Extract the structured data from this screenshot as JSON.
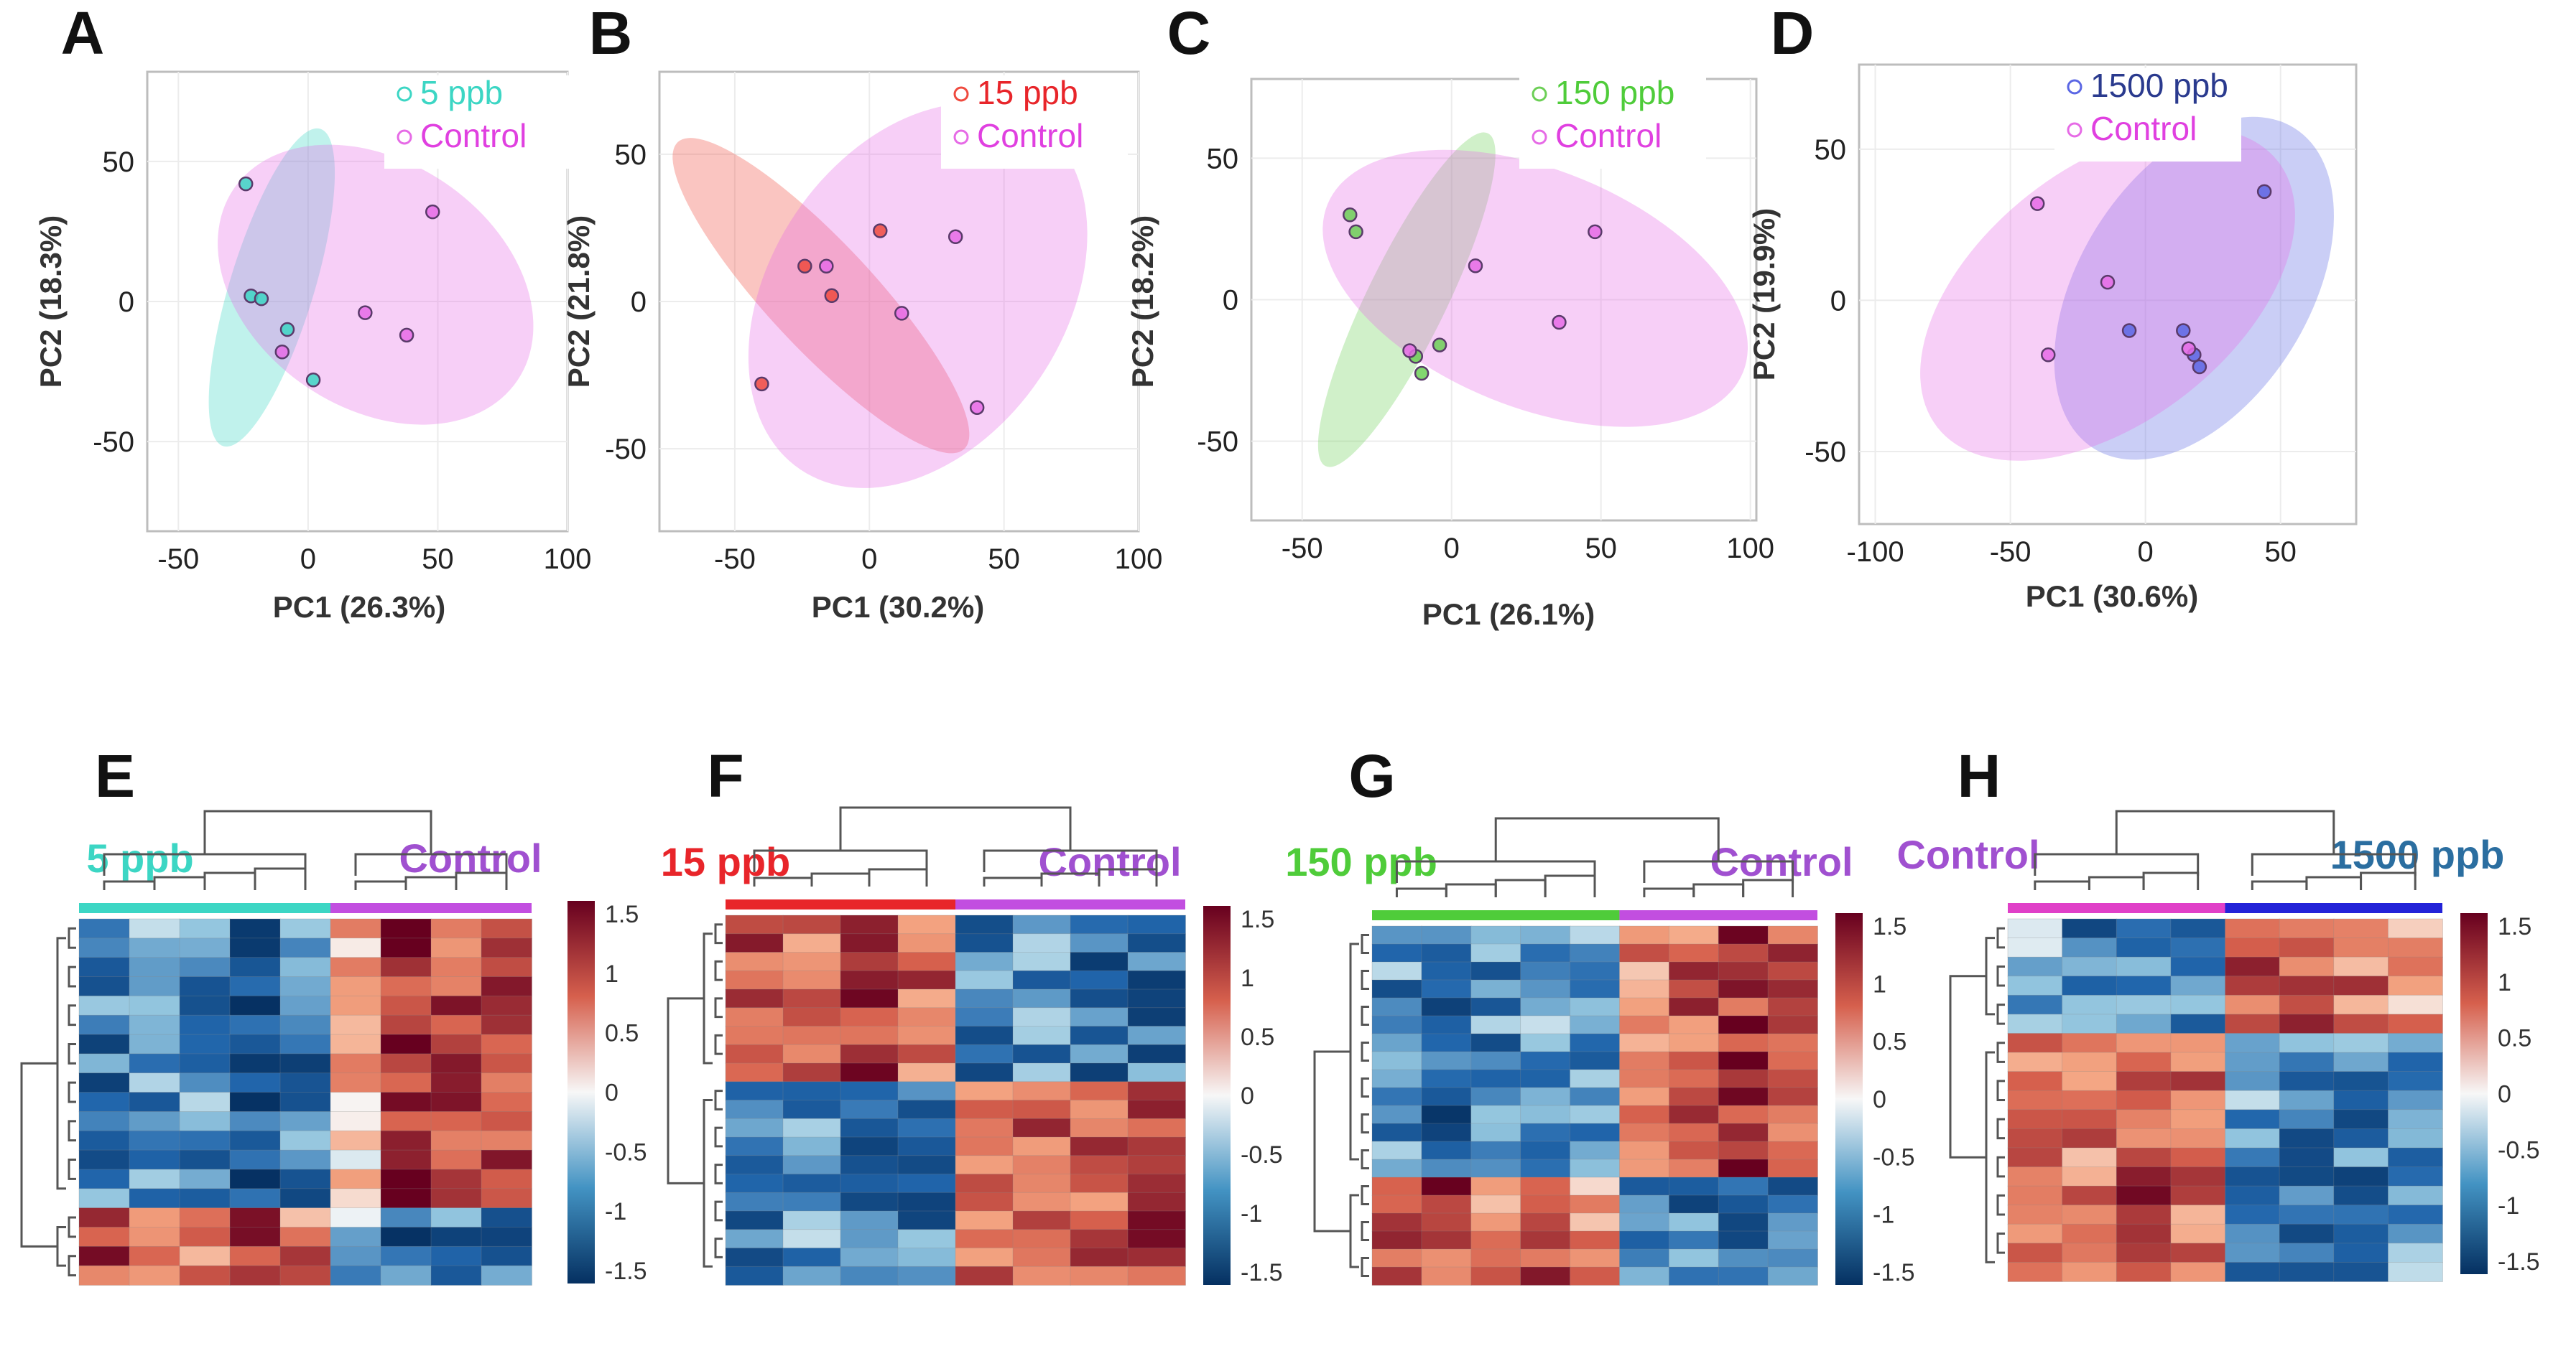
{
  "chart_data": [
    {
      "type": "scatter",
      "panel": "A",
      "xlabel": "PC1 (26.3%)",
      "ylabel": "PC2 (18.3%)",
      "xticks": [
        -50,
        0,
        50,
        100
      ],
      "yticks": [
        50,
        0,
        -50
      ],
      "xlim": [
        -62,
        100
      ],
      "ylim": [
        -82,
        82
      ],
      "series": [
        {
          "name": "5 ppb",
          "color": "#3cd6c4",
          "points": [
            [
              -24,
              42
            ],
            [
              -22,
              2
            ],
            [
              -18,
              1
            ],
            [
              -8,
              -10
            ],
            [
              2,
              -28
            ]
          ],
          "ellipse": {
            "cx": -14,
            "cy": 5,
            "rx": 64,
            "ry": 15,
            "angle": -73
          }
        },
        {
          "name": "Control",
          "color": "#e66be6",
          "points": [
            [
              -10,
              -18
            ],
            [
              22,
              -4
            ],
            [
              38,
              -12
            ],
            [
              48,
              32
            ]
          ],
          "ellipse": {
            "cx": 26,
            "cy": 6,
            "rx": 66,
            "ry": 44,
            "angle": 34
          }
        }
      ]
    },
    {
      "type": "scatter",
      "panel": "B",
      "xlabel": "PC1 (30.2%)",
      "ylabel": "PC2 (21.8%)",
      "xticks": [
        -50,
        0,
        50,
        100
      ],
      "yticks": [
        50,
        0,
        -50
      ],
      "xlim": [
        -78,
        100
      ],
      "ylim": [
        -78,
        78
      ],
      "series": [
        {
          "name": "15 ppb",
          "color": "#ef4a3e",
          "points": [
            [
              -40,
              -28
            ],
            [
              -24,
              12
            ],
            [
              -14,
              2
            ],
            [
              4,
              24
            ]
          ],
          "ellipse": {
            "cx": -18,
            "cy": 2,
            "rx": 78,
            "ry": 18,
            "angle": 47
          }
        },
        {
          "name": "Control",
          "color": "#e66be6",
          "points": [
            [
              -16,
              12
            ],
            [
              12,
              -4
            ],
            [
              32,
              22
            ],
            [
              40,
              -36
            ]
          ],
          "ellipse": {
            "cx": 18,
            "cy": 2,
            "rx": 78,
            "ry": 50,
            "angle": -56
          }
        }
      ]
    },
    {
      "type": "scatter",
      "panel": "C",
      "xlabel": "PC1 (26.1%)",
      "ylabel": "PC2 (18.2%)",
      "xticks": [
        -50,
        0,
        50,
        100
      ],
      "yticks": [
        50,
        0,
        -50
      ],
      "xlim": [
        -67,
        102
      ],
      "ylim": [
        -78,
        78
      ],
      "series": [
        {
          "name": "150 ppb",
          "color": "#6ccf56",
          "points": [
            [
              -34,
              30
            ],
            [
              -32,
              24
            ],
            [
              -12,
              -20
            ],
            [
              -10,
              -26
            ],
            [
              -4,
              -16
            ]
          ],
          "ellipse": {
            "cx": -15,
            "cy": 0,
            "rx": 62,
            "ry": 14,
            "angle": -64
          }
        },
        {
          "name": "Control",
          "color": "#e66be6",
          "points": [
            [
              -14,
              -18
            ],
            [
              8,
              12
            ],
            [
              36,
              -8
            ],
            [
              48,
              24
            ]
          ],
          "ellipse": {
            "cx": 28,
            "cy": 4,
            "rx": 75,
            "ry": 42,
            "angle": 22
          }
        }
      ]
    },
    {
      "type": "scatter",
      "panel": "D",
      "xlabel": "PC1 (30.6%)",
      "ylabel": "PC2 (19.9%)",
      "xticks": [
        -100,
        -50,
        0,
        50
      ],
      "yticks": [
        50,
        0,
        -50
      ],
      "xlim": [
        -106,
        78
      ],
      "ylim": [
        -74,
        78
      ],
      "series": [
        {
          "name": "1500 ppb",
          "color": "#5b67e4",
          "points": [
            [
              -6,
              -10
            ],
            [
              14,
              -10
            ],
            [
              18,
              -18
            ],
            [
              20,
              -22
            ],
            [
              44,
              36
            ]
          ],
          "ellipse": {
            "cx": 18,
            "cy": 4,
            "rx": 70,
            "ry": 38,
            "angle": -58
          }
        },
        {
          "name": "Control",
          "color": "#e66be6",
          "points": [
            [
              -40,
              32
            ],
            [
              -36,
              -18
            ],
            [
              -14,
              6
            ],
            [
              16,
              -16
            ]
          ],
          "ellipse": {
            "cx": -14,
            "cy": 2,
            "rx": 80,
            "ry": 42,
            "angle": -38
          }
        }
      ]
    },
    {
      "type": "heatmap",
      "panel": "E",
      "groups": [
        {
          "name": "5 ppb",
          "color": "#3cd6c4",
          "cols": 5
        },
        {
          "name": "Control",
          "color": "#c24ee0",
          "cols": 4
        }
      ],
      "colorbar_ticks": [
        "1.5",
        "1",
        "0.5",
        "0",
        "-0.5",
        "-1",
        "-1.5"
      ],
      "row_blocks": [
        {
          "rows": 15,
          "means": [
            -0.95,
            -0.75,
            -0.75,
            -1.15,
            -0.95,
            0.35,
            1.35,
            1.1,
            1.05
          ]
        },
        {
          "rows": 4,
          "means": [
            1.1,
            1.0,
            0.85,
            1.1,
            0.8,
            -0.45,
            -1.1,
            -0.9,
            -1.0
          ]
        }
      ]
    },
    {
      "type": "heatmap",
      "panel": "F",
      "groups": [
        {
          "name": "15 ppb",
          "color": "#e8252a",
          "cols": 4
        },
        {
          "name": "Control",
          "color": "#c24ee0",
          "cols": 4
        }
      ],
      "colorbar_ticks": [
        "1.5",
        "1",
        "0.5",
        "0",
        "-0.5",
        "-1",
        "-1.5"
      ],
      "row_blocks": [
        {
          "rows": 9,
          "means": [
            0.95,
            0.9,
            1.2,
            0.9,
            -0.95,
            -0.75,
            -1.1,
            -1.0
          ]
        },
        {
          "rows": 11,
          "means": [
            -0.95,
            -0.75,
            -1.0,
            -0.95,
            0.8,
            1.05,
            0.9,
            1.1
          ]
        }
      ]
    },
    {
      "type": "heatmap",
      "panel": "G",
      "groups": [
        {
          "name": "150 ppb",
          "color": "#4fcc3a",
          "cols": 5
        },
        {
          "name": "Control",
          "color": "#c24ee0",
          "cols": 4
        }
      ],
      "colorbar_ticks": [
        "1.5",
        "1",
        "0.5",
        "0",
        "-0.5",
        "-1",
        "-1.5"
      ],
      "row_blocks": [
        {
          "rows": 14,
          "means": [
            -0.8,
            -1.05,
            -0.8,
            -0.65,
            -0.65,
            0.65,
            0.95,
            1.25,
            1.0
          ]
        },
        {
          "rows": 6,
          "means": [
            1.0,
            1.1,
            0.7,
            1.05,
            0.6,
            -0.8,
            -0.9,
            -1.05,
            -0.9
          ]
        }
      ]
    },
    {
      "type": "heatmap",
      "panel": "H",
      "groups": [
        {
          "name": "Control",
          "color": "#e040c8",
          "cols": 4
        },
        {
          "name": "1500 ppb",
          "color": "#2323d8",
          "cols": 4
        }
      ],
      "colorbar_ticks": [
        "1.5",
        "1",
        "0.5",
        "0",
        "-0.5",
        "-1",
        "-1.5"
      ],
      "row_blocks": [
        {
          "rows": 6,
          "means": [
            -0.6,
            -0.9,
            -0.55,
            -0.75,
            0.95,
            1.15,
            0.85,
            0.6
          ]
        },
        {
          "rows": 13,
          "means": [
            0.75,
            0.8,
            1.05,
            0.8,
            -0.75,
            -0.85,
            -0.95,
            -0.75
          ]
        }
      ]
    }
  ],
  "group_label_colors": {
    "5 ppb": "#3cd6c4",
    "15 ppb": "#e8252a",
    "150 ppb": "#4fcc3a",
    "1500 ppb": "#2b6ea0",
    "Control": "#a050d0"
  },
  "legend_colors": {
    "5 ppb": "#3cd6c4",
    "15 ppb": "#e8252a",
    "150 ppb": "#4fcc3a",
    "1500 ppb": "#2a3a8e",
    "Control": "#e040e0"
  }
}
